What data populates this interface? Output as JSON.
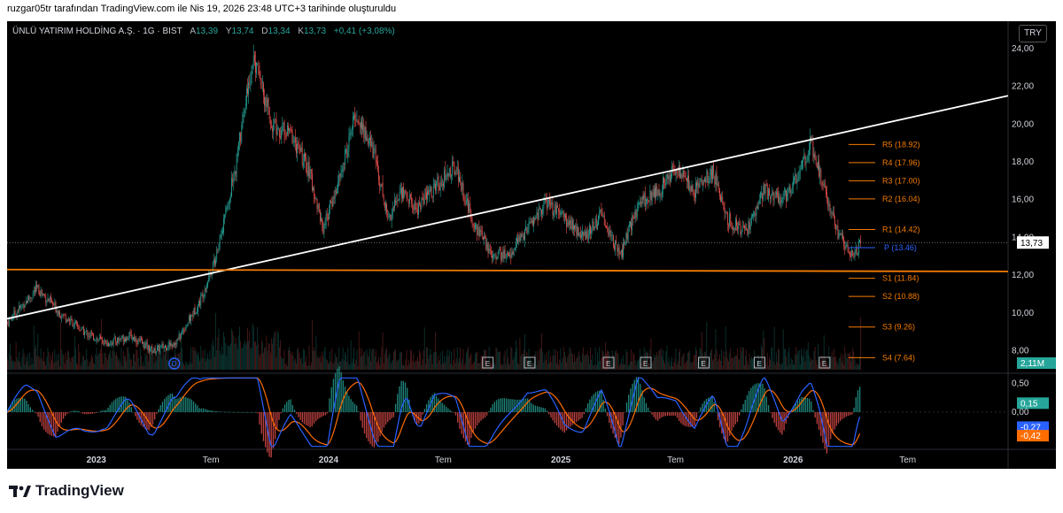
{
  "caption": "ruzgar05tr tarafından TradingView.com ile Nis 19, 2026 23:48 UTC+3 tarihinde oluşturuldu",
  "legend": {
    "title": "ÜNLÜ YATIRIM HOLDİNG A.Ş. · 1G · BIST",
    "fields": [
      {
        "k": "A",
        "v": "13,39"
      },
      {
        "k": "Y",
        "v": "13,74"
      },
      {
        "k": "D",
        "v": "13,34"
      },
      {
        "k": "K",
        "v": "13,73"
      },
      {
        "k": "",
        "v": "+0,41 (+3,08%)"
      }
    ]
  },
  "currency": "TRY",
  "brand": "TradingView",
  "chart_data": {
    "type": "candlestick",
    "colors": {
      "up": "#26a69a",
      "down": "#ef5350",
      "background": "#000000",
      "text": "#d1d4dc",
      "pivot": "#f57c00",
      "trend": "#ffffff",
      "macd": "#2962ff",
      "signal": "#ff6d00",
      "last_price": "#ffffff",
      "volume_badge": "#26a69a"
    },
    "price_axis": {
      "min": 7.0,
      "max": 24.6,
      "ticks": [
        "24,00",
        "22,00",
        "20,00",
        "18,00",
        "16,00",
        "14,00",
        "12,00",
        "10,00",
        "8,00"
      ],
      "tick_values": [
        24,
        22,
        20,
        18,
        16,
        14,
        12,
        10,
        8
      ]
    },
    "time_axis": {
      "labels": [
        {
          "text": "2023",
          "t": 2023.0,
          "bold": true
        },
        {
          "text": "Tem",
          "t": 2023.5,
          "bold": false
        },
        {
          "text": "2024",
          "t": 2024.0,
          "bold": true
        },
        {
          "text": "Tem",
          "t": 2024.5,
          "bold": false
        },
        {
          "text": "2025",
          "t": 2025.0,
          "bold": true
        },
        {
          "text": "Tem",
          "t": 2025.5,
          "bold": false
        },
        {
          "text": "2026",
          "t": 2026.0,
          "bold": true
        },
        {
          "text": "Tem",
          "t": 2026.5,
          "bold": false
        }
      ],
      "start": 2022.62,
      "end": 2026.93
    },
    "price_path": [
      [
        2022.62,
        9.5
      ],
      [
        2022.75,
        11.3
      ],
      [
        2022.85,
        10.0
      ],
      [
        2022.95,
        9.0
      ],
      [
        2023.05,
        8.4
      ],
      [
        2023.15,
        8.8
      ],
      [
        2023.25,
        8.0
      ],
      [
        2023.35,
        8.5
      ],
      [
        2023.45,
        10.6
      ],
      [
        2023.52,
        13.0
      ],
      [
        2023.6,
        17.5
      ],
      [
        2023.68,
        23.5
      ],
      [
        2023.76,
        20.0
      ],
      [
        2023.84,
        19.5
      ],
      [
        2023.92,
        17.5
      ],
      [
        2023.98,
        14.5
      ],
      [
        2024.05,
        17.0
      ],
      [
        2024.12,
        20.5
      ],
      [
        2024.2,
        18.5
      ],
      [
        2024.26,
        15.0
      ],
      [
        2024.32,
        16.5
      ],
      [
        2024.38,
        15.5
      ],
      [
        2024.45,
        16.5
      ],
      [
        2024.55,
        17.8
      ],
      [
        2024.62,
        15.0
      ],
      [
        2024.7,
        13.2
      ],
      [
        2024.78,
        13.0
      ],
      [
        2024.86,
        14.5
      ],
      [
        2024.94,
        15.8
      ],
      [
        2025.02,
        15.0
      ],
      [
        2025.1,
        14.0
      ],
      [
        2025.18,
        15.2
      ],
      [
        2025.26,
        13.0
      ],
      [
        2025.34,
        15.8
      ],
      [
        2025.42,
        16.5
      ],
      [
        2025.5,
        17.6
      ],
      [
        2025.58,
        16.5
      ],
      [
        2025.66,
        17.5
      ],
      [
        2025.72,
        15.0
      ],
      [
        2025.8,
        14.2
      ],
      [
        2025.88,
        16.5
      ],
      [
        2025.96,
        16.0
      ],
      [
        2026.04,
        17.6
      ],
      [
        2026.08,
        19.0
      ],
      [
        2026.14,
        16.5
      ],
      [
        2026.2,
        14.2
      ],
      [
        2026.26,
        13.0
      ],
      [
        2026.3,
        13.73
      ]
    ],
    "last_price": {
      "value": 13.73,
      "label": "13,73"
    },
    "volume_badge": "2,11M",
    "trend_lines": [
      {
        "name": "rising-trendline",
        "color": "#ffffff",
        "from": [
          2022.62,
          9.7
        ],
        "to": [
          2026.93,
          21.5
        ]
      },
      {
        "name": "horizontal-support",
        "color": "#f57c00",
        "from": [
          2022.62,
          12.3
        ],
        "to": [
          2026.93,
          12.2
        ]
      }
    ],
    "pivots": [
      {
        "label": "R5 (18.92)",
        "value": 18.92
      },
      {
        "label": "R4 (17.96)",
        "value": 17.96
      },
      {
        "label": "R3 (17.00)",
        "value": 17.0
      },
      {
        "label": "R2 (16.04)",
        "value": 16.04
      },
      {
        "label": "R1 (14.42)",
        "value": 14.42
      },
      {
        "label": "P (13.46)",
        "value": 13.46,
        "pivot": true
      },
      {
        "label": "S1 (11.84)",
        "value": 11.84
      },
      {
        "label": "S2 (10.88)",
        "value": 10.88
      },
      {
        "label": "S3 (9.26)",
        "value": 9.26
      },
      {
        "label": "S4 (7.64)",
        "value": 7.64
      }
    ],
    "event_markers": [
      {
        "t": 2023.34,
        "label": "D",
        "kind": "dividend"
      },
      {
        "t": 2024.69,
        "label": "E"
      },
      {
        "t": 2024.87,
        "label": "E"
      },
      {
        "t": 2025.21,
        "label": "E"
      },
      {
        "t": 2025.37,
        "label": "E"
      },
      {
        "t": 2025.62,
        "label": "E"
      },
      {
        "t": 2025.86,
        "label": "E"
      },
      {
        "t": 2026.14,
        "label": "E"
      }
    ],
    "macd": {
      "axis_min": -0.62,
      "axis_max": 0.62,
      "ticks": [
        "0,50",
        "0,00"
      ],
      "tick_values": [
        0.5,
        0.0
      ],
      "badges": [
        {
          "label": "0,15",
          "value": 0.15,
          "color": "#26a69a"
        },
        {
          "label": "-0,27",
          "value": -0.27,
          "color": "#2962ff"
        },
        {
          "label": "-0,42",
          "value": -0.42,
          "color": "#ff6d00"
        }
      ]
    }
  }
}
